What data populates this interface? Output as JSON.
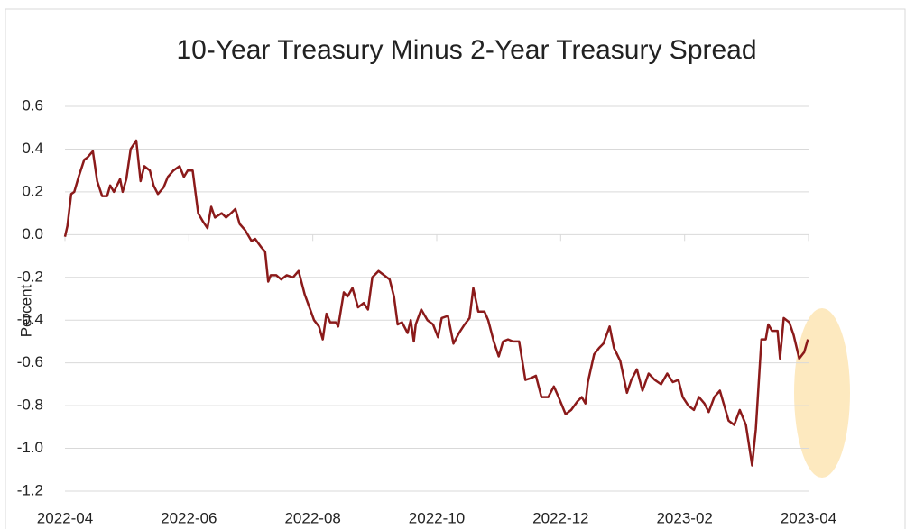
{
  "chart_data": {
    "type": "line",
    "title": "10-Year Treasury Minus 2-Year Treasury Spread",
    "y_label": "Percent",
    "color": "#8b1a1a",
    "grid": true,
    "xlim": [
      0,
      12
    ],
    "xticks": [
      {
        "value": 0,
        "label": "2022-04"
      },
      {
        "value": 2,
        "label": "2022-06"
      },
      {
        "value": 4,
        "label": "2022-08"
      },
      {
        "value": 6,
        "label": "2022-10"
      },
      {
        "value": 8,
        "label": "2022-12"
      },
      {
        "value": 10,
        "label": "2023-02"
      },
      {
        "value": 12,
        "label": "2023-04"
      }
    ],
    "ylim": [
      -1.2,
      0.6
    ],
    "yticks": [
      0.6,
      0.4,
      0.2,
      {
        "value": 0,
        "label": "0.0"
      },
      -0.2,
      -0.4,
      -0.6,
      -0.8,
      {
        "value": -1,
        "label": "-1.0"
      },
      -1.2
    ],
    "x": [
      0,
      0.04,
      0.1,
      0.15,
      0.22,
      0.31,
      0.36,
      0.45,
      0.52,
      0.6,
      0.68,
      0.73,
      0.79,
      0.89,
      0.93,
      0.99,
      1.06,
      1.15,
      1.22,
      1.28,
      1.37,
      1.43,
      1.5,
      1.59,
      1.66,
      1.75,
      1.85,
      1.92,
      1.98,
      2.06,
      2.15,
      2.23,
      2.3,
      2.36,
      2.42,
      2.53,
      2.6,
      2.68,
      2.75,
      2.82,
      2.91,
      3.01,
      3.07,
      3.17,
      3.23,
      3.28,
      3.32,
      3.41,
      3.49,
      3.58,
      3.68,
      3.77,
      3.87,
      3.97,
      4.02,
      4.1,
      4.16,
      4.22,
      4.28,
      4.37,
      4.41,
      4.5,
      4.56,
      4.64,
      4.73,
      4.82,
      4.89,
      4.96,
      5.06,
      5.15,
      5.24,
      5.31,
      5.37,
      5.44,
      5.53,
      5.58,
      5.63,
      5.66,
      5.75,
      5.85,
      5.94,
      6.02,
      6.08,
      6.18,
      6.27,
      6.36,
      6.45,
      6.53,
      6.59,
      6.67,
      6.77,
      6.83,
      6.92,
      7.0,
      7.07,
      7.15,
      7.23,
      7.33,
      7.43,
      7.53,
      7.6,
      7.69,
      7.8,
      7.89,
      7.98,
      8.08,
      8.17,
      8.27,
      8.34,
      8.4,
      8.44,
      8.54,
      8.62,
      8.69,
      8.79,
      8.86,
      8.96,
      9.07,
      9.14,
      9.23,
      9.32,
      9.42,
      9.52,
      9.62,
      9.72,
      9.81,
      9.9,
      9.97,
      10.06,
      10.15,
      10.23,
      10.32,
      10.39,
      10.48,
      10.57,
      10.63,
      10.71,
      10.8,
      10.89,
      10.99,
      11.09,
      11.15,
      11.24,
      11.31,
      11.35,
      11.41,
      11.5,
      11.54,
      11.6,
      11.69,
      11.76,
      11.85,
      11.93,
      11.99
    ],
    "values": [
      -0.01,
      0.04,
      0.19,
      0.2,
      0.27,
      0.35,
      0.36,
      0.39,
      0.25,
      0.18,
      0.18,
      0.23,
      0.2,
      0.26,
      0.2,
      0.26,
      0.4,
      0.44,
      0.25,
      0.32,
      0.3,
      0.23,
      0.19,
      0.22,
      0.27,
      0.3,
      0.32,
      0.27,
      0.3,
      0.3,
      0.1,
      0.06,
      0.03,
      0.13,
      0.08,
      0.1,
      0.08,
      0.1,
      0.12,
      0.05,
      0.02,
      -0.03,
      -0.02,
      -0.06,
      -0.08,
      -0.22,
      -0.19,
      -0.19,
      -0.21,
      -0.19,
      -0.2,
      -0.17,
      -0.28,
      -0.36,
      -0.4,
      -0.43,
      -0.49,
      -0.37,
      -0.41,
      -0.41,
      -0.43,
      -0.27,
      -0.29,
      -0.25,
      -0.34,
      -0.32,
      -0.35,
      -0.2,
      -0.17,
      -0.19,
      -0.21,
      -0.29,
      -0.42,
      -0.41,
      -0.46,
      -0.4,
      -0.5,
      -0.42,
      -0.35,
      -0.4,
      -0.42,
      -0.48,
      -0.39,
      -0.38,
      -0.51,
      -0.46,
      -0.42,
      -0.39,
      -0.25,
      -0.36,
      -0.36,
      -0.4,
      -0.5,
      -0.57,
      -0.5,
      -0.49,
      -0.5,
      -0.5,
      -0.68,
      -0.67,
      -0.66,
      -0.76,
      -0.76,
      -0.71,
      -0.77,
      -0.84,
      -0.82,
      -0.78,
      -0.76,
      -0.79,
      -0.69,
      -0.56,
      -0.53,
      -0.51,
      -0.43,
      -0.53,
      -0.59,
      -0.74,
      -0.68,
      -0.63,
      -0.73,
      -0.65,
      -0.68,
      -0.7,
      -0.65,
      -0.69,
      -0.68,
      -0.76,
      -0.8,
      -0.82,
      -0.76,
      -0.79,
      -0.83,
      -0.76,
      -0.73,
      -0.79,
      -0.87,
      -0.89,
      -0.82,
      -0.89,
      -1.08,
      -0.91,
      -0.49,
      -0.49,
      -0.42,
      -0.45,
      -0.45,
      -0.58,
      -0.39,
      -0.41,
      -0.47,
      -0.58,
      -0.55,
      -0.49
    ]
  }
}
